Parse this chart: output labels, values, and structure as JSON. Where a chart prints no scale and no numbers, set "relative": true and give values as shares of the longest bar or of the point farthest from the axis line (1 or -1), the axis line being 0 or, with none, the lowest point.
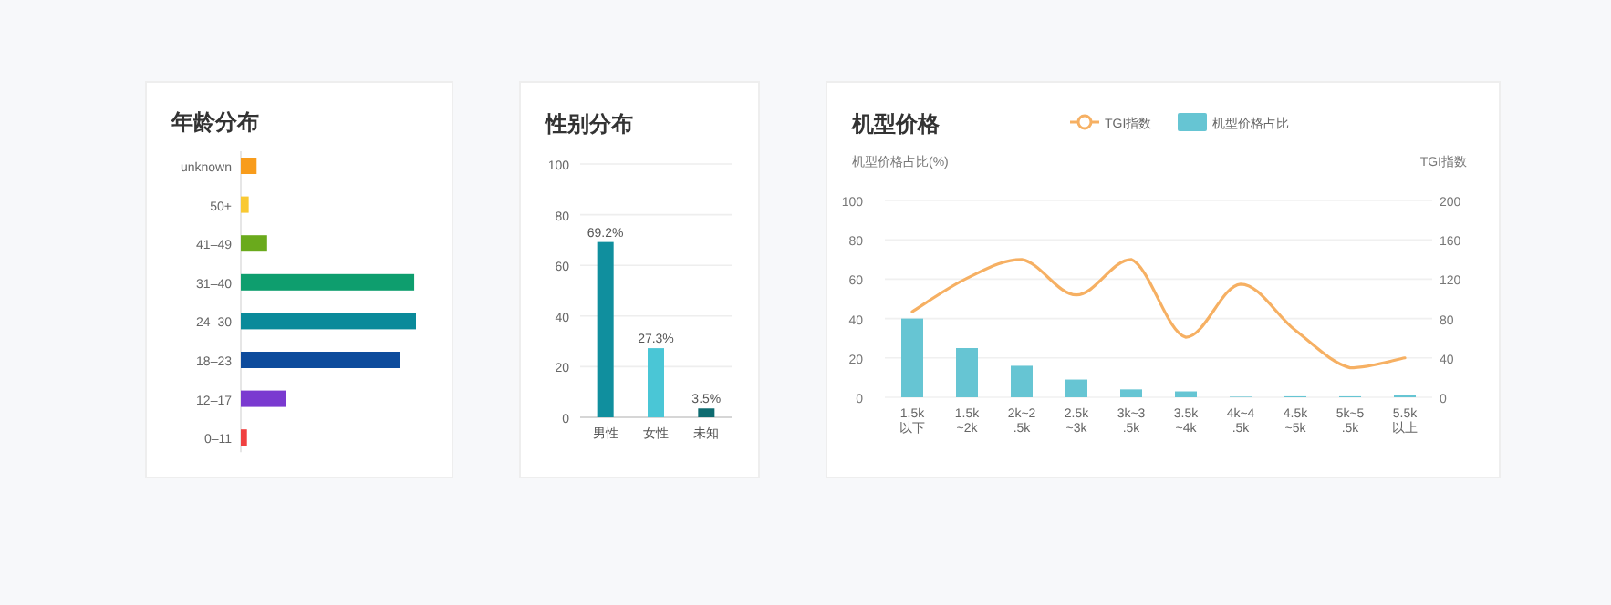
{
  "chart_data": [
    {
      "type": "bar",
      "title": "年龄分布",
      "orientation": "horizontal",
      "relative": true,
      "categories": [
        "unknown",
        "50+",
        "41–49",
        "31–40",
        "24–30",
        "18–23",
        "12–17",
        "0–11"
      ],
      "values": [
        0.09,
        0.045,
        0.15,
        0.99,
        1,
        0.91,
        0.26,
        0.035
      ],
      "colors": [
        "#f89c1c",
        "#f9c933",
        "#6aaa1c",
        "#0e9e6e",
        "#0a8a9a",
        "#0d4b9c",
        "#7a3ad0",
        "#f04040"
      ]
    },
    {
      "type": "bar",
      "title": "性别分布",
      "categories": [
        "男性",
        "女性",
        "未知"
      ],
      "values": [
        69.2,
        27.3,
        3.5
      ],
      "colors": [
        "#108f9e",
        "#4ac6d6",
        "#0e6b70"
      ],
      "ylim": [
        0,
        100
      ],
      "yticks": [
        0,
        20,
        40,
        60,
        80,
        100
      ],
      "grid": "y",
      "data_labels": true,
      "value_labels": [
        "69.2%",
        "27.3%",
        "3.5%"
      ]
    },
    {
      "type": "bar",
      "title": "机型价格",
      "ylabel": "机型价格占比(%)",
      "y2label": "TGI指数",
      "legend": "top",
      "grid": "y",
      "categories": [
        "1.5k以下",
        "1.5k~2k",
        "2k~2.5k",
        "2.5k~3k",
        "3k~3.5k",
        "3.5k~4k",
        "4k~4.5k",
        "4.5k~5k",
        "5k~5.5k",
        "5.5k以上"
      ],
      "ylim": [
        0,
        100
      ],
      "yticks": [
        0,
        20,
        40,
        60,
        80,
        100
      ],
      "y2lim": [
        0,
        200
      ],
      "y2ticks": [
        0,
        40,
        80,
        120,
        160,
        200
      ],
      "series": [
        {
          "name": "TGI指数",
          "type": "line",
          "axis": "y2",
          "color": "#f6b063",
          "values": [
            87,
            121,
            140,
            104,
            140,
            61,
            115,
            68,
            30,
            40
          ]
        },
        {
          "name": "机型价格占比",
          "type": "bar",
          "color": "#66c5d3",
          "values": [
            40,
            25,
            16,
            9,
            4,
            3,
            0.3,
            0.5,
            0.5,
            1
          ]
        }
      ]
    }
  ]
}
